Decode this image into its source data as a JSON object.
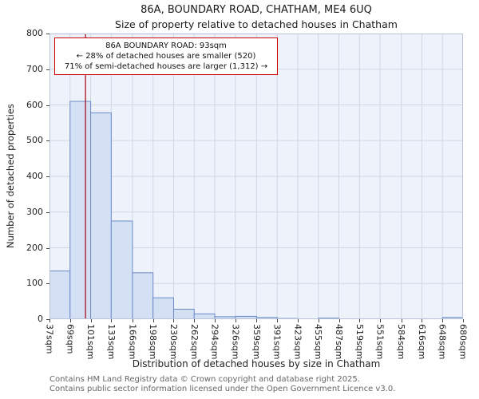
{
  "title": "86A, BOUNDARY ROAD, CHATHAM, ME4 6UQ",
  "subtitle": "Size of property relative to detached houses in Chatham",
  "ylabel": "Number of detached properties",
  "xlabel": "Distribution of detached houses by size in Chatham",
  "annotation": {
    "line1": "86A BOUNDARY ROAD: 93sqm",
    "line2": "← 28% of detached houses are smaller (520)",
    "line3": "71% of semi-detached houses are larger (1,312) →"
  },
  "footer": {
    "line1": "Contains HM Land Registry data © Crown copyright and database right 2025.",
    "line2": "Contains public sector information licensed under the Open Government Licence v3.0."
  },
  "chart_data": {
    "type": "bar",
    "title": "86A, BOUNDARY ROAD, CHATHAM, ME4 6UQ — Size of property relative to detached houses in Chatham",
    "xlabel": "Distribution of detached houses by size in Chatham",
    "ylabel": "Number of detached properties",
    "bin_edges": [
      37,
      69,
      101,
      133,
      166,
      198,
      230,
      262,
      294,
      326,
      359,
      391,
      423,
      455,
      487,
      519,
      551,
      584,
      616,
      648,
      680
    ],
    "tick_labels": [
      "37sqm",
      "69sqm",
      "101sqm",
      "133sqm",
      "166sqm",
      "198sqm",
      "230sqm",
      "262sqm",
      "294sqm",
      "326sqm",
      "359sqm",
      "391sqm",
      "423sqm",
      "455sqm",
      "487sqm",
      "519sqm",
      "551sqm",
      "584sqm",
      "616sqm",
      "648sqm",
      "680sqm"
    ],
    "values": [
      135,
      610,
      578,
      275,
      130,
      60,
      28,
      15,
      7,
      8,
      5,
      2,
      0,
      3,
      0,
      0,
      0,
      0,
      0,
      5
    ],
    "marker_value": 93,
    "marker_label": "93sqm",
    "ylim": [
      0,
      800
    ],
    "yticks": [
      0,
      100,
      200,
      300,
      400,
      500,
      600,
      700,
      800
    ],
    "grid": true,
    "colors": {
      "bar_fill": "#d4e0f4",
      "bar_edge": "#6b8cc9",
      "marker_line": "#aa1122",
      "grid": "#d0d6e4",
      "plot_bg": "#eef2fa",
      "plot_border": "#b9c2d6",
      "annotation_border": "#cc0000"
    }
  }
}
